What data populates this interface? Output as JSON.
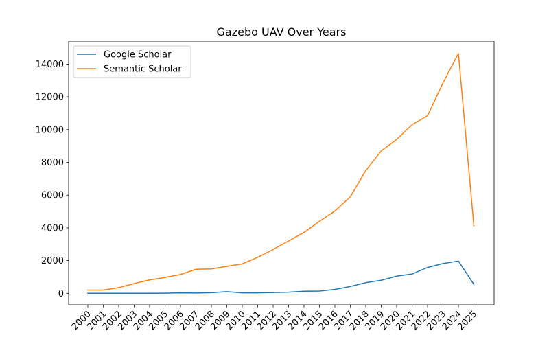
{
  "chart_data": {
    "type": "line",
    "title": "Gazebo  UAV Over Years",
    "xlabel": "",
    "ylabel": "",
    "x": [
      "2000",
      "2001",
      "2002",
      "2003",
      "2004",
      "2005",
      "2006",
      "2007",
      "2008",
      "2009",
      "2010",
      "2011",
      "2012",
      "2013",
      "2014",
      "2015",
      "2016",
      "2017",
      "2018",
      "2019",
      "2020",
      "2021",
      "2022",
      "2023",
      "2024",
      "2025"
    ],
    "ylim": [
      -700,
      15400
    ],
    "yticks": [
      0,
      2000,
      4000,
      6000,
      8000,
      10000,
      12000,
      14000
    ],
    "grid": false,
    "legend_position": "upper-left",
    "series": [
      {
        "name": "Google Scholar",
        "color": "#1f77b4",
        "values": [
          5,
          5,
          5,
          5,
          5,
          10,
          30,
          20,
          40,
          100,
          30,
          30,
          50,
          70,
          130,
          140,
          240,
          420,
          650,
          800,
          1050,
          1180,
          1580,
          1820,
          1970,
          550
        ]
      },
      {
        "name": "Semantic Scholar",
        "color": "#ff7f0e",
        "values": [
          200,
          200,
          350,
          600,
          820,
          970,
          1150,
          1470,
          1490,
          1650,
          1800,
          2200,
          2680,
          3200,
          3720,
          4400,
          5030,
          5900,
          7500,
          8700,
          9400,
          10300,
          10850,
          12850,
          14650,
          4130
        ]
      }
    ]
  }
}
